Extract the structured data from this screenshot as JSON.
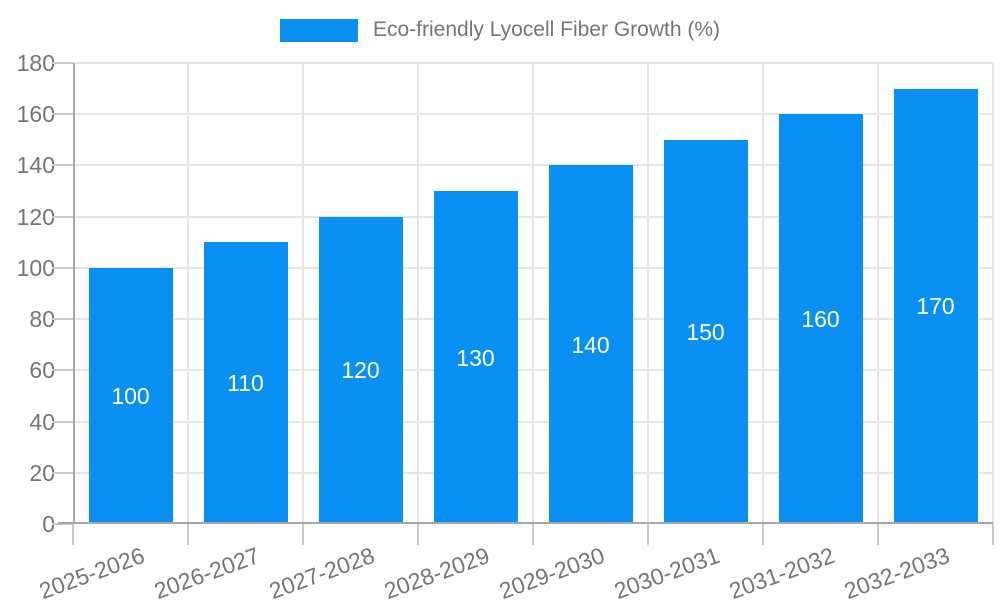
{
  "chart_data": {
    "type": "bar",
    "title": "Eco-friendly Lyocell Fiber Growth (%)",
    "categories": [
      "2025-2026",
      "2026-2027",
      "2027-2028",
      "2028-2029",
      "2029-2030",
      "2030-2031",
      "2031-2032",
      "2032-2033"
    ],
    "values": [
      100,
      110,
      120,
      130,
      140,
      150,
      160,
      170
    ],
    "yticks": [
      0,
      20,
      40,
      60,
      80,
      100,
      120,
      140,
      160,
      180
    ],
    "ylim": [
      0,
      180
    ],
    "xlabel": "",
    "ylabel": "",
    "legend_position": "top-center",
    "grid": true,
    "bar_value_labels_position": "inside-center"
  },
  "colors": {
    "bar": "#0A90F3",
    "axis": "#A6A6A6",
    "gridline": "#E6E6E6",
    "tick": "#C9C9C9",
    "label_text": "#757575",
    "bar_label_text": "#FFFFFF",
    "background": "#FFFFFF"
  }
}
